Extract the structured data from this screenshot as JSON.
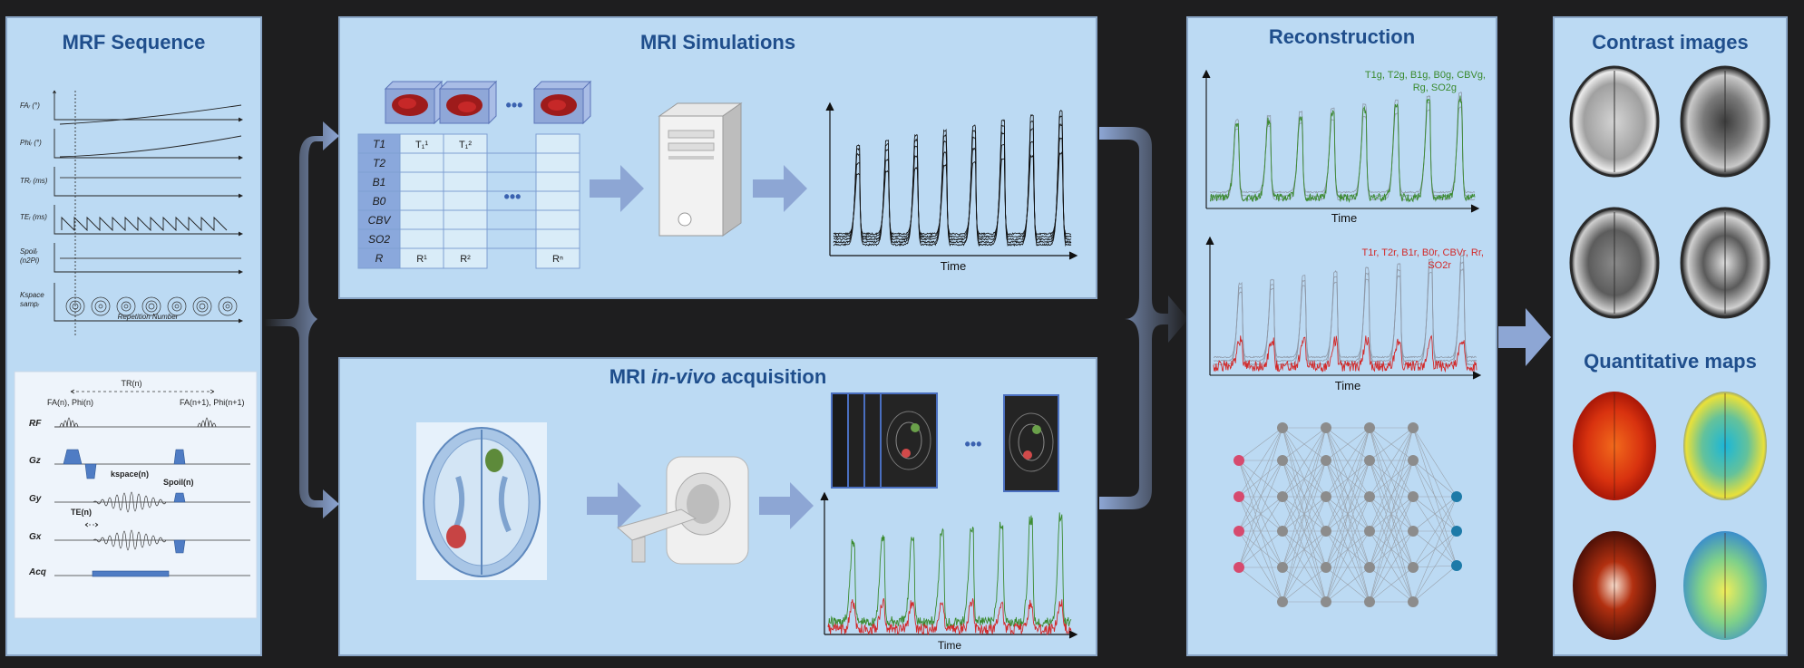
{
  "panels": {
    "mrf_sequence": {
      "title": "MRF Sequence",
      "row_labels": [
        "FAᵣ (°)",
        "Phiᵣ (°)",
        "TRᵣ (ms)",
        "TEᵣ (ms)",
        "Spoilᵣ",
        "(n2Pi)",
        "Kspace",
        "sampᵣ"
      ],
      "x_axis_label": "Repetition Number",
      "diagram": {
        "tr_label": "TR(n)",
        "fa_phi_n": "FA(n), Phi(n)",
        "fa_phi_n1": "FA(n+1), Phi(n+1)",
        "kspace_label": "kspace(n)",
        "spoil_label": "Spoil(n)",
        "te_label": "TE(n)",
        "rows": [
          "RF",
          "Gz",
          "Gy",
          "Gx",
          "Acq"
        ]
      }
    },
    "mri_simulations": {
      "title": "MRI Simulations",
      "params": [
        "T1",
        "T2",
        "B1",
        "B0",
        "CBV",
        "SO2",
        "R"
      ],
      "columns": [
        "T₁¹",
        "T₁²",
        "R¹",
        "R²",
        "Rⁿ"
      ],
      "ellipsis": "•••",
      "time_label": "Time"
    },
    "mri_invivo": {
      "title_pre": "MRI ",
      "title_em": "in-vivo",
      "title_post": " acquisition",
      "ellipsis": "•••",
      "time_label": "Time"
    },
    "reconstruction": {
      "title": "Reconstruction",
      "green_label_1": "T1g, T2g, B1g, B0g, CBVg,",
      "green_label_2": "Rg, SO2g",
      "red_label_1": "T1r, T2r, B1r, B0r, CBVr, Rr,",
      "red_label_2": "SO2r",
      "time_label": "Time"
    },
    "contrast": {
      "title": "Contrast images",
      "quant_title": "Quantitative maps"
    }
  },
  "colors": {
    "panel_bg": "#bcdaf3",
    "title": "#1f4e8c",
    "arrow": "#8da6d4",
    "green": "#3a8a2e",
    "red": "#d22a2a",
    "node_pink": "#d64a6e",
    "node_teal": "#1d7aa8",
    "node_gray": "#8c8c8c"
  }
}
